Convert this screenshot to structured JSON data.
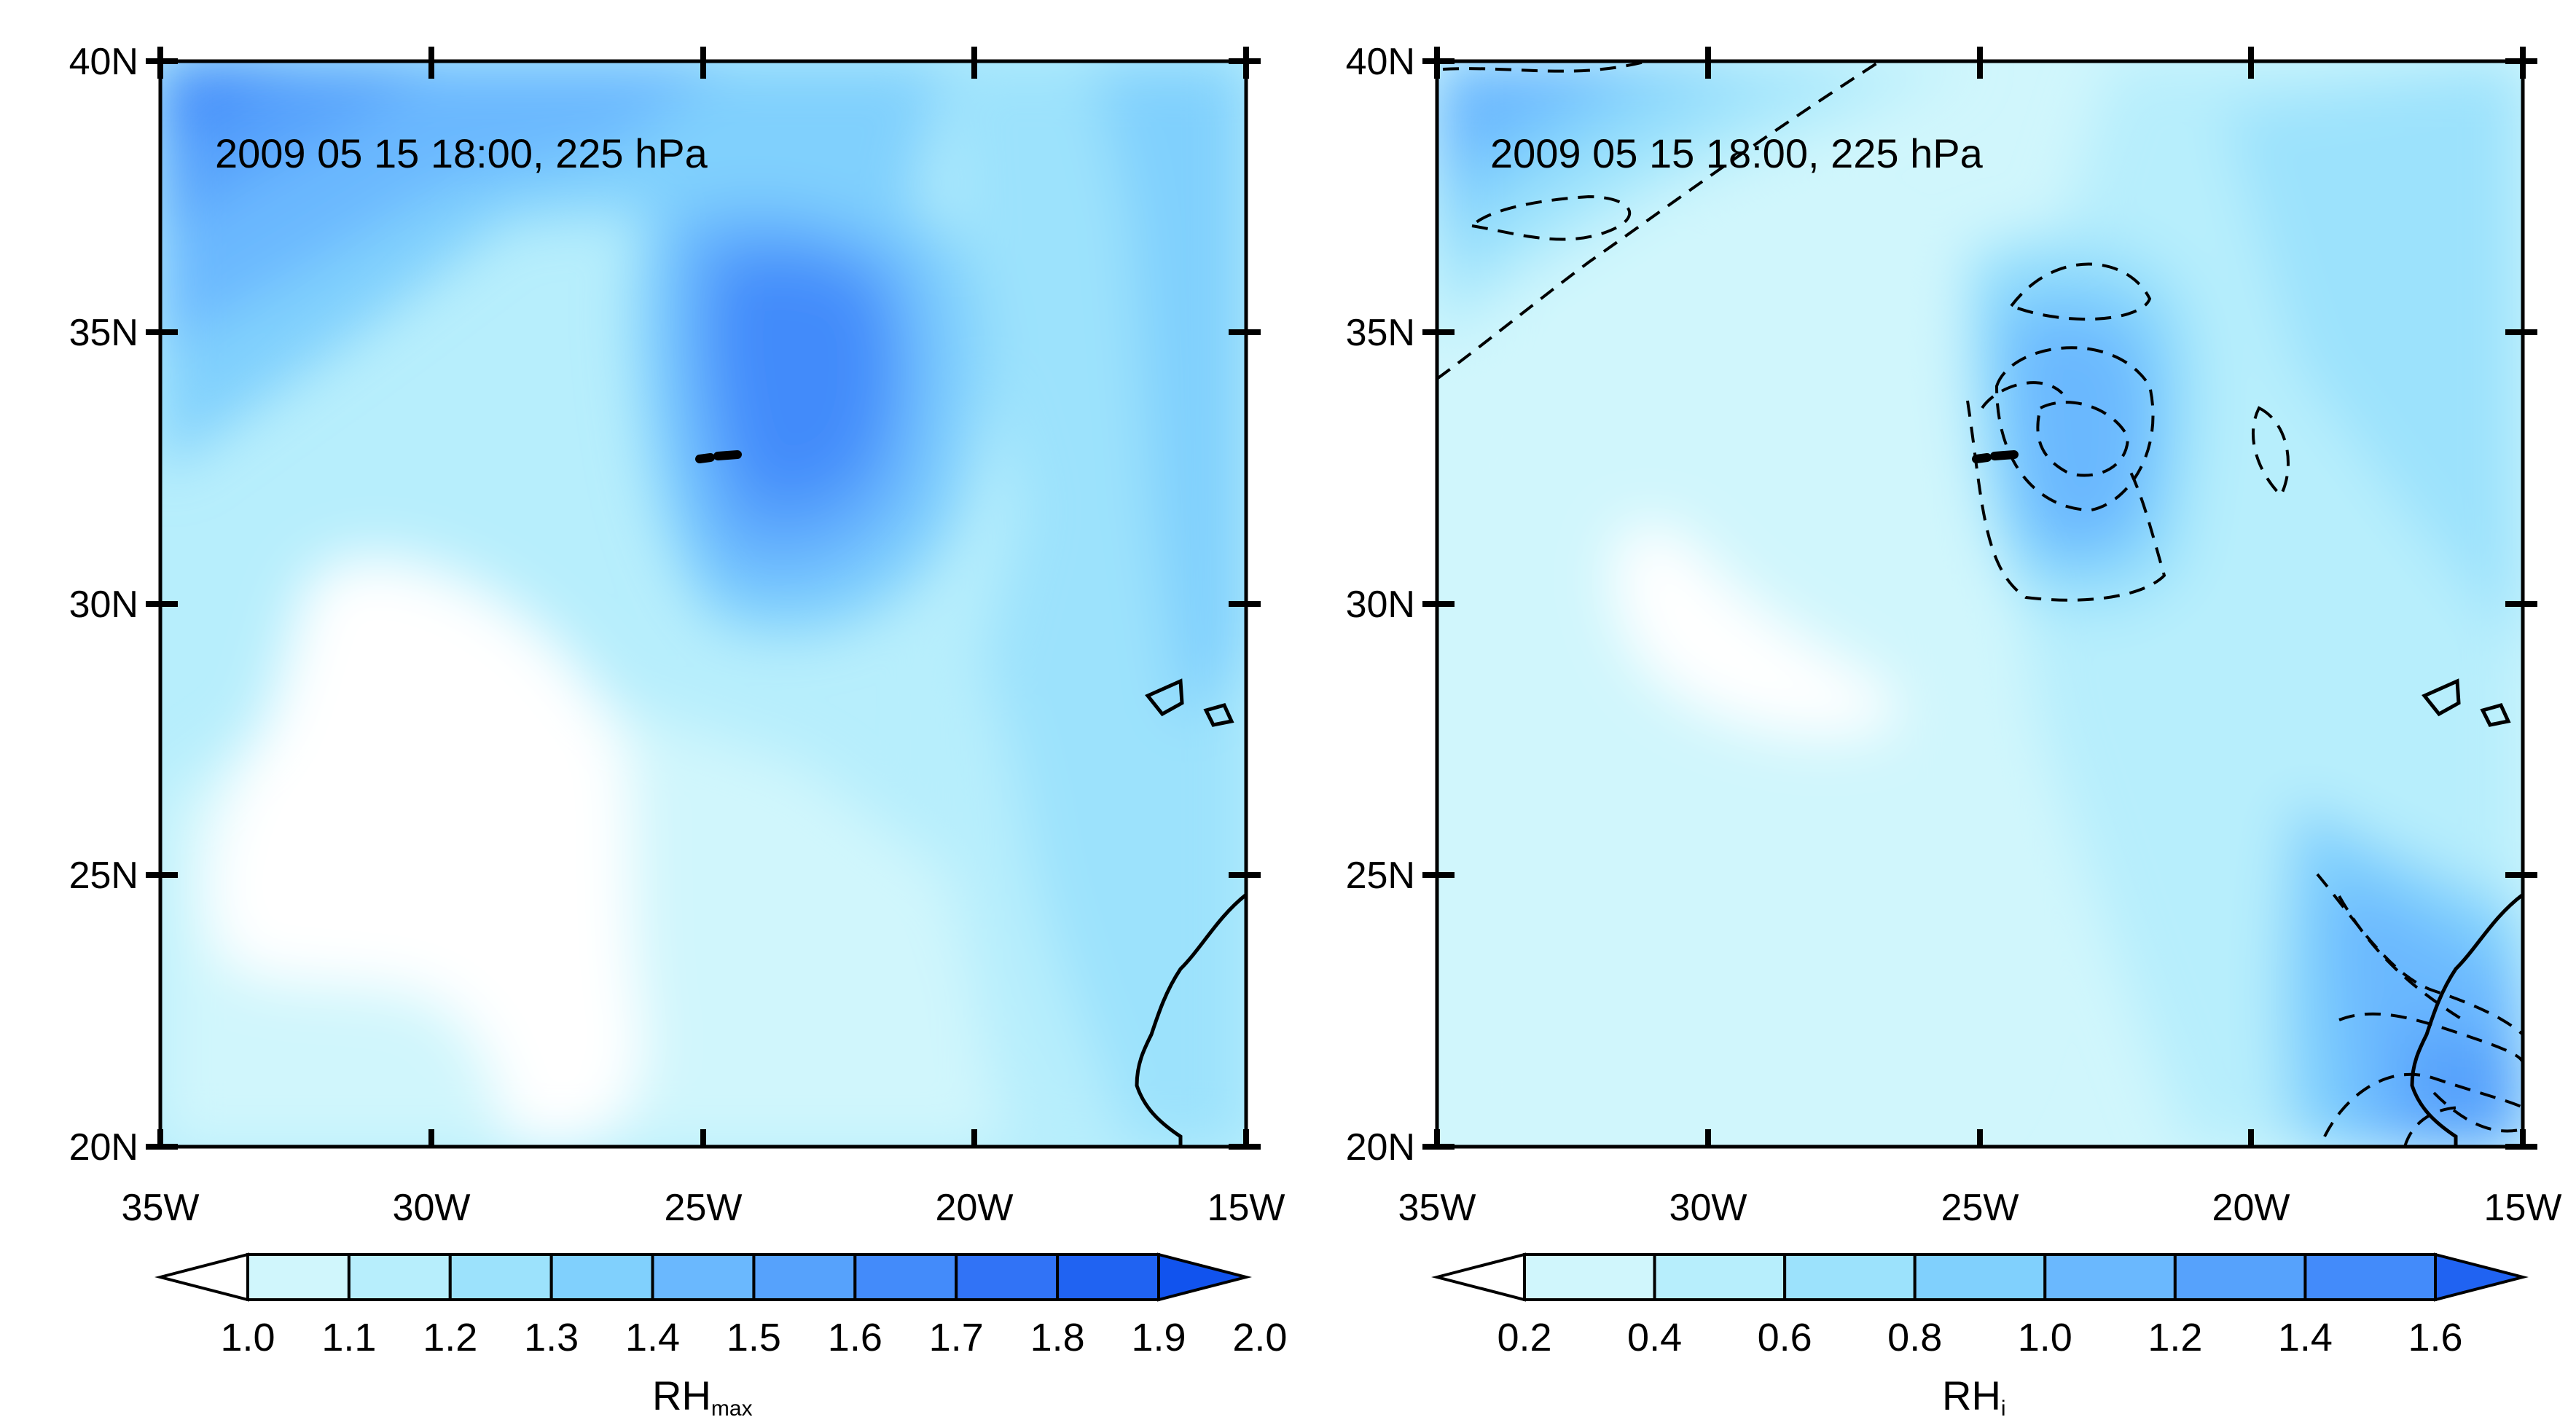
{
  "chart_data": [
    {
      "type": "heatmap",
      "annotation": "2009 05 15 18:00, 225 hPa",
      "colorbar_title": "RH",
      "colorbar_subscript": "max",
      "colorbar_levels": [
        "1.0",
        "1.1",
        "1.2",
        "1.3",
        "1.4",
        "1.5",
        "1.6",
        "1.7",
        "1.8",
        "1.9",
        "2.0"
      ],
      "colorbar_colors": [
        "#ffffff",
        "#d0f6fc",
        "#b7eefc",
        "#9ce2fc",
        "#80d0fd",
        "#6ab8fe",
        "#56a2fc",
        "#438bfa",
        "#3173f6",
        "#2063f2",
        "#1153ee"
      ],
      "x_ticks": [
        "35W",
        "30W",
        "25W",
        "20W",
        "15W"
      ],
      "y_ticks": [
        "40N",
        "35N",
        "30N",
        "25N",
        "20N"
      ],
      "xlim": [
        -35,
        -15
      ],
      "ylim": [
        20,
        40
      ]
    },
    {
      "type": "heatmap",
      "annotation": "2009 05 15 18:00, 225 hPa",
      "colorbar_title": "RH",
      "colorbar_subscript": "i",
      "colorbar_levels": [
        "0.2",
        "0.4",
        "0.6",
        "0.8",
        "1.0",
        "1.2",
        "1.4",
        "1.6"
      ],
      "colorbar_colors": [
        "#ffffff",
        "#d0f6fc",
        "#b7eefc",
        "#9ce2fc",
        "#80d0fd",
        "#6ab8fe",
        "#56a2fc",
        "#438bfa",
        "#2063f2"
      ],
      "x_ticks": [
        "35W",
        "30W",
        "25W",
        "20W",
        "15W"
      ],
      "y_ticks": [
        "40N",
        "35N",
        "30N",
        "25N",
        "20N"
      ],
      "xlim": [
        -35,
        -15
      ],
      "ylim": [
        20,
        40
      ]
    }
  ]
}
